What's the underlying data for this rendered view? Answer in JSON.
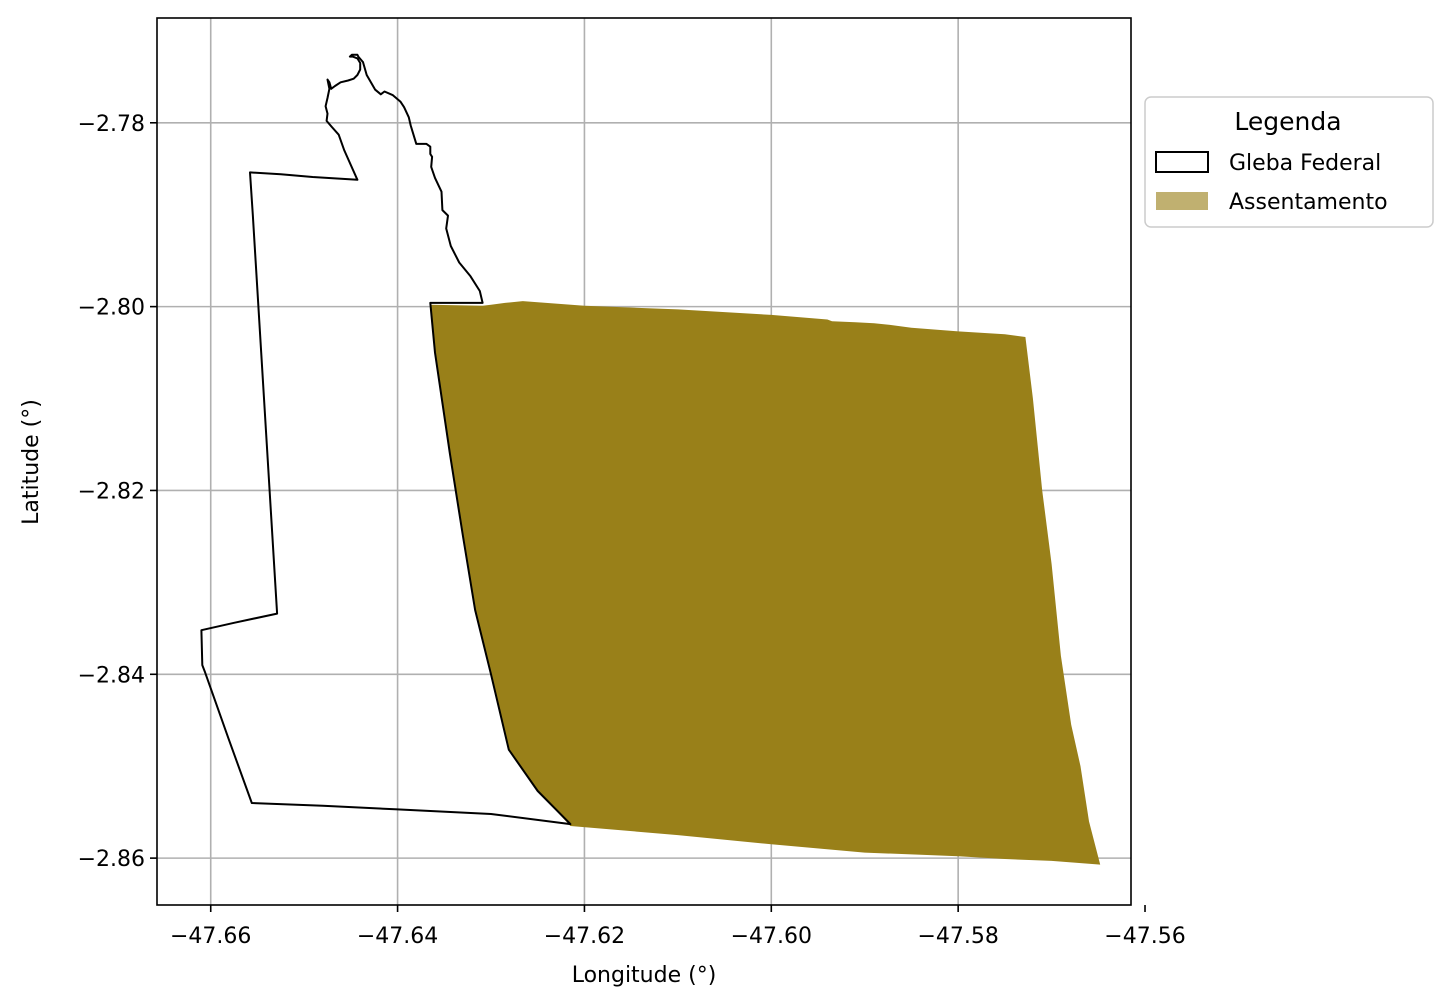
{
  "map": {
    "xlabel": "Longitude (°)",
    "ylabel": "Latitude (°)",
    "xlim": [
      -47.66575,
      -47.5615
    ],
    "ylim": [
      -2.8651,
      -2.7686
    ],
    "x_ticks": [
      {
        "value": -47.66,
        "label": "−47.66"
      },
      {
        "value": -47.64,
        "label": "−47.64"
      },
      {
        "value": -47.62,
        "label": "−47.62"
      },
      {
        "value": -47.6,
        "label": "−47.60"
      },
      {
        "value": -47.58,
        "label": "−47.58"
      },
      {
        "value": -47.56,
        "label": "−47.56"
      }
    ],
    "y_ticks": [
      {
        "value": -2.78,
        "label": "−2.78"
      },
      {
        "value": -2.8,
        "label": "−2.80"
      },
      {
        "value": -2.82,
        "label": "−2.82"
      },
      {
        "value": -2.84,
        "label": "−2.84"
      },
      {
        "value": -2.86,
        "label": "−2.86"
      }
    ],
    "grid": true,
    "legend": {
      "title": "Legenda",
      "placement": "outside right, upper",
      "items": [
        {
          "label": "Gleba Federal",
          "style": "outline",
          "edge_color": "#000000",
          "face_color": "none"
        },
        {
          "label": "Assentamento",
          "style": "filled",
          "face_color": "#998019"
        }
      ]
    },
    "colors": {
      "assentamento": "#998019",
      "gleba_edge": "#000000",
      "grid": "#b0b0b0"
    }
  },
  "features": {
    "gleba_federal": {
      "name": "Gleba Federal",
      "coordinates": [
        [
          -47.6365,
          -2.7996
        ],
        [
          -47.6309,
          -2.7996
        ],
        [
          -47.6312,
          -2.7983
        ],
        [
          -47.6322,
          -2.7967
        ],
        [
          -47.6334,
          -2.7952
        ],
        [
          -47.6343,
          -2.7934
        ],
        [
          -47.6348,
          -2.7915
        ],
        [
          -47.6346,
          -2.7901
        ],
        [
          -47.6352,
          -2.7895
        ],
        [
          -47.6353,
          -2.7875
        ],
        [
          -47.636,
          -2.786
        ],
        [
          -47.6364,
          -2.7848
        ],
        [
          -47.6363,
          -2.7837
        ],
        [
          -47.6365,
          -2.7834
        ],
        [
          -47.6365,
          -2.7826
        ],
        [
          -47.6369,
          -2.7823
        ],
        [
          -47.638,
          -2.7823
        ],
        [
          -47.6386,
          -2.7803
        ],
        [
          -47.6388,
          -2.7794
        ],
        [
          -47.6393,
          -2.7783
        ],
        [
          -47.6397,
          -2.7777
        ],
        [
          -47.6405,
          -2.777
        ],
        [
          -47.6414,
          -2.7766
        ],
        [
          -47.6418,
          -2.7769
        ],
        [
          -47.6424,
          -2.7764
        ],
        [
          -47.6433,
          -2.7748
        ],
        [
          -47.6437,
          -2.7734
        ],
        [
          -47.6442,
          -2.7728
        ],
        [
          -47.6443,
          -2.7726
        ],
        [
          -47.6449,
          -2.7726
        ],
        [
          -47.6451,
          -2.7728
        ],
        [
          -47.6448,
          -2.7728
        ],
        [
          -47.6443,
          -2.773
        ],
        [
          -47.644,
          -2.7735
        ],
        [
          -47.644,
          -2.7742
        ],
        [
          -47.6443,
          -2.7748
        ],
        [
          -47.6447,
          -2.7752
        ],
        [
          -47.6453,
          -2.7754
        ],
        [
          -47.6461,
          -2.7756
        ],
        [
          -47.6467,
          -2.776
        ],
        [
          -47.6471,
          -2.7763
        ],
        [
          -47.6473,
          -2.7756
        ],
        [
          -47.6475,
          -2.7753
        ],
        [
          -47.6473,
          -2.7763
        ],
        [
          -47.6475,
          -2.7773
        ],
        [
          -47.6477,
          -2.7782
        ],
        [
          -47.6475,
          -2.779
        ],
        [
          -47.6476,
          -2.7798
        ],
        [
          -47.647,
          -2.7805
        ],
        [
          -47.6463,
          -2.7813
        ],
        [
          -47.6457,
          -2.783
        ],
        [
          -47.6443,
          -2.7862
        ],
        [
          -47.6491,
          -2.7859
        ],
        [
          -47.6525,
          -2.7856
        ],
        [
          -47.6558,
          -2.7854
        ],
        [
          -47.6555,
          -2.79
        ],
        [
          -47.6552,
          -2.795
        ],
        [
          -47.6549,
          -2.8
        ],
        [
          -47.6546,
          -2.805
        ],
        [
          -47.6543,
          -2.81
        ],
        [
          -47.654,
          -2.815
        ],
        [
          -47.6537,
          -2.82
        ],
        [
          -47.6534,
          -2.825
        ],
        [
          -47.6531,
          -2.83
        ],
        [
          -47.6529,
          -2.8334
        ],
        [
          -47.6575,
          -2.8344
        ],
        [
          -47.661,
          -2.8352
        ],
        [
          -47.6609,
          -2.839
        ],
        [
          -47.6606,
          -2.8398
        ],
        [
          -47.6581,
          -2.847
        ],
        [
          -47.6556,
          -2.854
        ],
        [
          -47.648,
          -2.8543
        ],
        [
          -47.64,
          -2.8547
        ],
        [
          -47.63,
          -2.8552
        ],
        [
          -47.6215,
          -2.8563
        ],
        [
          -47.625,
          -2.8527
        ],
        [
          -47.6281,
          -2.8482
        ],
        [
          -47.63,
          -2.84
        ],
        [
          -47.6317,
          -2.833
        ],
        [
          -47.633,
          -2.825
        ],
        [
          -47.6344,
          -2.816
        ],
        [
          -47.636,
          -2.805
        ],
        [
          -47.6365,
          -2.7996
        ]
      ]
    },
    "assentamento": {
      "name": "Assentamento",
      "coordinates": [
        [
          -47.6365,
          -2.7998
        ],
        [
          -47.6309,
          -2.7999
        ],
        [
          -47.63,
          -2.7998
        ],
        [
          -47.6285,
          -2.7996
        ],
        [
          -47.6266,
          -2.7994
        ],
        [
          -47.62,
          -2.7999
        ],
        [
          -47.61,
          -2.8003
        ],
        [
          -47.6,
          -2.8009
        ],
        [
          -47.594,
          -2.8014
        ],
        [
          -47.5935,
          -2.8016
        ],
        [
          -47.591,
          -2.8017
        ],
        [
          -47.589,
          -2.8018
        ],
        [
          -47.5872,
          -2.802
        ],
        [
          -47.585,
          -2.8023
        ],
        [
          -47.58,
          -2.8027
        ],
        [
          -47.575,
          -2.803
        ],
        [
          -47.5728,
          -2.8033
        ],
        [
          -47.572,
          -2.81
        ],
        [
          -47.571,
          -2.82
        ],
        [
          -47.57,
          -2.828
        ],
        [
          -47.569,
          -2.838
        ],
        [
          -47.5679,
          -2.8455
        ],
        [
          -47.5669,
          -2.85
        ],
        [
          -47.566,
          -2.856
        ],
        [
          -47.5648,
          -2.8607
        ],
        [
          -47.57,
          -2.8603
        ],
        [
          -47.575,
          -2.8601
        ],
        [
          -47.58,
          -2.8598
        ],
        [
          -47.585,
          -2.8596
        ],
        [
          -47.59,
          -2.8594
        ],
        [
          -47.6,
          -2.8585
        ],
        [
          -47.61,
          -2.8575
        ],
        [
          -47.6215,
          -2.8565
        ],
        [
          -47.625,
          -2.8527
        ],
        [
          -47.6281,
          -2.8482
        ],
        [
          -47.63,
          -2.84
        ],
        [
          -47.6317,
          -2.833
        ],
        [
          -47.633,
          -2.825
        ],
        [
          -47.6344,
          -2.816
        ],
        [
          -47.636,
          -2.805
        ]
      ]
    }
  }
}
